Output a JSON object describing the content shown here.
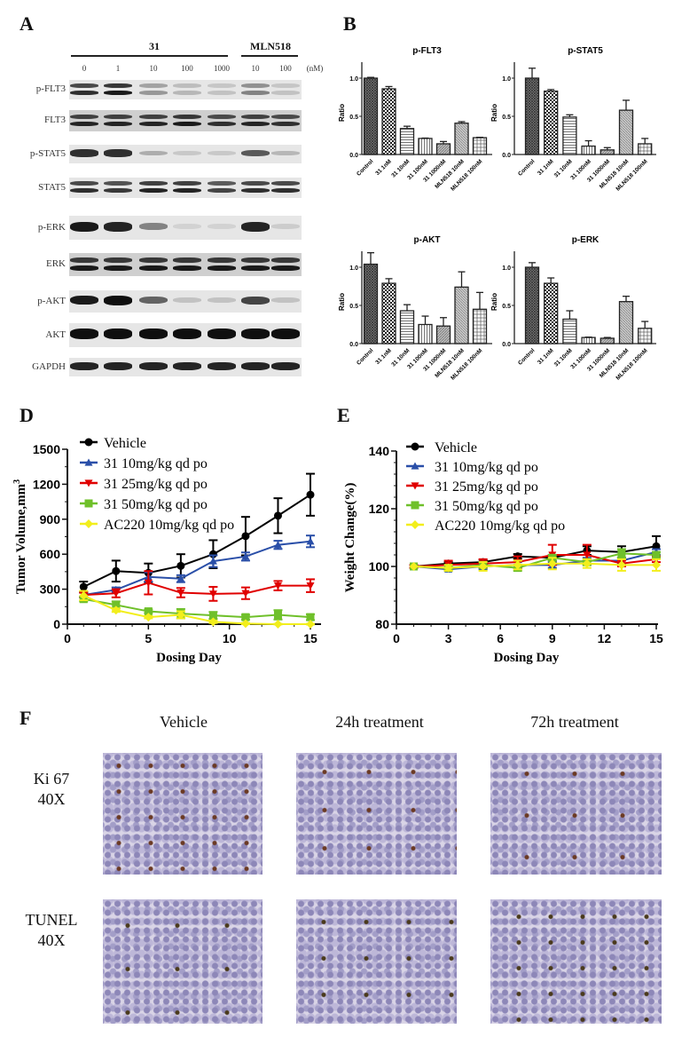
{
  "panels": {
    "a": "A",
    "b": "B",
    "d": "D",
    "e": "E",
    "f": "F"
  },
  "blot": {
    "group_31": "31",
    "group_mln": "MLN518",
    "concentrations": [
      "0",
      "1",
      "10",
      "100",
      "1000",
      "10",
      "100"
    ],
    "unit": "(nM)",
    "rows": [
      {
        "label": "p-FLT3",
        "intensity": [
          0.85,
          0.95,
          0.35,
          0.2,
          0.15,
          0.45,
          0.15
        ],
        "double": true
      },
      {
        "label": "FLT3",
        "intensity": [
          0.9,
          0.9,
          0.9,
          0.95,
          0.85,
          0.9,
          0.85
        ],
        "double": true
      },
      {
        "label": "p-STAT5",
        "intensity": [
          0.85,
          0.85,
          0.25,
          0.12,
          0.12,
          0.65,
          0.2
        ],
        "double": false
      },
      {
        "label": "STAT5",
        "intensity": [
          0.85,
          0.8,
          0.9,
          0.9,
          0.75,
          0.85,
          0.85
        ],
        "double": true
      },
      {
        "label": "p-ERK",
        "intensity": [
          0.95,
          0.9,
          0.45,
          0.07,
          0.07,
          0.9,
          0.1
        ],
        "double": false
      },
      {
        "label": "ERK",
        "intensity": [
          0.95,
          0.95,
          0.95,
          0.95,
          0.95,
          0.95,
          0.95
        ],
        "double": true
      },
      {
        "label": "p-AKT",
        "intensity": [
          0.95,
          1.0,
          0.6,
          0.15,
          0.15,
          0.75,
          0.15
        ],
        "double": false
      },
      {
        "label": "AKT",
        "intensity": [
          1,
          1,
          1,
          1,
          1,
          1,
          1
        ],
        "double": false
      },
      {
        "label": "GAPDH",
        "intensity": [
          0.9,
          0.9,
          0.9,
          0.9,
          0.9,
          0.9,
          0.9
        ],
        "double": false
      }
    ]
  },
  "chart_data": [
    {
      "id": "b1",
      "type": "bar",
      "title": "p-FLT3",
      "ylabel": "Ratio",
      "ylim": [
        0,
        1.2
      ],
      "yticks": [
        "0.0",
        "0.5",
        "1.0"
      ],
      "categories": [
        "Control",
        "31 1nM",
        "31 10nM",
        "31 100nM",
        "31 1000nM",
        "MLN518 10nM",
        "MLN518 100nM"
      ],
      "values": [
        1.0,
        0.86,
        0.34,
        0.21,
        0.14,
        0.41,
        0.22
      ],
      "errors": [
        0.01,
        0.03,
        0.03,
        0.005,
        0.03,
        0.02,
        0.005
      ]
    },
    {
      "id": "b2",
      "type": "bar",
      "title": "p-STAT5",
      "ylabel": "Ratio",
      "ylim": [
        0,
        1.2
      ],
      "yticks": [
        "0.0",
        "0.5",
        "1.0"
      ],
      "categories": [
        "Control",
        "31 1nM",
        "31 10nM",
        "31 100nM",
        "31 1000nM",
        "MLN518 10nM",
        "MLN518 100nM"
      ],
      "values": [
        1.0,
        0.83,
        0.49,
        0.11,
        0.06,
        0.58,
        0.14
      ],
      "errors": [
        0.13,
        0.02,
        0.03,
        0.07,
        0.03,
        0.13,
        0.07
      ]
    },
    {
      "id": "b3",
      "type": "bar",
      "title": "p-AKT",
      "ylabel": "Ratio",
      "ylim": [
        0,
        1.2
      ],
      "yticks": [
        "0.0",
        "0.5",
        "1.0"
      ],
      "categories": [
        "Control",
        "31 1nM",
        "31 10nM",
        "31 100nM",
        "31 1000nM",
        "MLN518 10nM",
        "MLN518 100nM"
      ],
      "values": [
        1.04,
        0.79,
        0.43,
        0.25,
        0.23,
        0.74,
        0.45
      ],
      "errors": [
        0.15,
        0.06,
        0.08,
        0.11,
        0.11,
        0.2,
        0.22
      ]
    },
    {
      "id": "b4",
      "type": "bar",
      "title": "p-ERK",
      "ylabel": "Ratio",
      "ylim": [
        0,
        1.2
      ],
      "yticks": [
        "0.0",
        "0.5",
        "1.0"
      ],
      "categories": [
        "Control",
        "31 1nM",
        "31 10nM",
        "31 100nM",
        "31 1000nM",
        "MLN518 10nM",
        "MLN518 100nM"
      ],
      "values": [
        1.0,
        0.79,
        0.32,
        0.08,
        0.07,
        0.55,
        0.2
      ],
      "errors": [
        0.06,
        0.07,
        0.11,
        0.005,
        0.01,
        0.07,
        0.09
      ]
    },
    {
      "id": "d",
      "type": "line",
      "xlabel": "Dosing Day",
      "ylabel": "Tumor Volume,mm",
      "ylabel_sup": "3",
      "xlim": [
        0,
        16
      ],
      "xticks": [
        0,
        5,
        10,
        15
      ],
      "ylim": [
        0,
        1500
      ],
      "yticks": [
        0,
        300,
        600,
        900,
        1200,
        1500
      ],
      "legend": "top-left",
      "x": [
        1,
        3,
        5,
        7,
        9,
        11,
        13,
        15
      ],
      "series": [
        {
          "name": "Vehicle",
          "color": "#000000",
          "marker": "circle",
          "values": [
            320,
            455,
            440,
            500,
            600,
            755,
            930,
            1110
          ],
          "errors": [
            45,
            90,
            80,
            100,
            120,
            165,
            150,
            180
          ]
        },
        {
          "name": "31 10mg/kg qd po",
          "color": "#2a4fa8",
          "marker": "triangle-up",
          "values": [
            250,
            295,
            405,
            390,
            540,
            580,
            680,
            710
          ],
          "errors": [
            20,
            20,
            40,
            30,
            50,
            35,
            35,
            50
          ]
        },
        {
          "name": "31 25mg/kg qd po",
          "color": "#e00000",
          "marker": "triangle-down",
          "values": [
            250,
            265,
            355,
            270,
            260,
            265,
            330,
            330
          ],
          "errors": [
            20,
            35,
            100,
            40,
            60,
            50,
            40,
            55
          ]
        },
        {
          "name": "31 50mg/kg qd po",
          "color": "#6fc02a",
          "marker": "square",
          "values": [
            215,
            165,
            110,
            90,
            75,
            60,
            80,
            60
          ],
          "errors": [
            20,
            30,
            15,
            40,
            30,
            20,
            40,
            25
          ]
        },
        {
          "name": "AC220 10mg/kg qd po",
          "color": "#f2ee1c",
          "marker": "diamond",
          "values": [
            245,
            120,
            60,
            80,
            20,
            5,
            0,
            0
          ],
          "errors": [
            40,
            15,
            10,
            30,
            10,
            5,
            3,
            3
          ]
        }
      ]
    },
    {
      "id": "e",
      "type": "line",
      "xlabel": "Dosing Day",
      "ylabel": "Weight Change(%)",
      "xlim": [
        0,
        15
      ],
      "xticks": [
        0,
        3,
        6,
        9,
        12,
        15
      ],
      "ylim": [
        80,
        140
      ],
      "yticks": [
        80,
        100,
        120,
        140
      ],
      "legend": "top-left",
      "x": [
        1,
        3,
        5,
        7,
        9,
        11,
        13,
        15
      ],
      "series": [
        {
          "name": "Vehicle",
          "color": "#000000",
          "marker": "circle",
          "values": [
            100,
            101,
            101.5,
            103.5,
            103,
            105.5,
            105,
            107
          ],
          "errors": [
            0,
            0.5,
            0.8,
            0.8,
            1,
            1.5,
            2,
            3.5
          ]
        },
        {
          "name": "31 10mg/kg qd po",
          "color": "#2a4fa8",
          "marker": "triangle-up",
          "values": [
            100,
            99,
            100,
            100.5,
            100.5,
            102,
            102,
            105
          ],
          "errors": [
            0,
            0.5,
            1,
            1,
            1,
            1,
            1,
            1
          ]
        },
        {
          "name": "31 25mg/kg qd po",
          "color": "#e00000",
          "marker": "triangle-down",
          "values": [
            100,
            100.5,
            101,
            101.5,
            104,
            104,
            101,
            102.5
          ],
          "errors": [
            0.5,
            1.5,
            1.5,
            2,
            3.5,
            3.5,
            1,
            1
          ]
        },
        {
          "name": "31 50mg/kg qd po",
          "color": "#6fc02a",
          "marker": "square",
          "values": [
            100,
            99.5,
            100.5,
            99.5,
            103,
            101.5,
            104.5,
            104
          ],
          "errors": [
            0,
            0.5,
            1,
            1,
            1,
            1,
            1.5,
            1
          ]
        },
        {
          "name": "AC220 10mg/kg qd po",
          "color": "#f2ee1c",
          "marker": "diamond",
          "values": [
            100,
            99.5,
            100,
            100.5,
            101,
            101,
            100.5,
            100.5
          ],
          "errors": [
            0,
            1,
            1.5,
            1.5,
            2,
            1.5,
            2,
            2
          ]
        }
      ]
    }
  ],
  "histology": {
    "columns": [
      "Vehicle",
      "24h treatment",
      "72h treatment"
    ],
    "rows": [
      {
        "label1": "Ki 67",
        "label2": "40X",
        "positive_fraction": [
          0.6,
          0.25,
          0.15
        ]
      },
      {
        "label1": "TUNEL",
        "label2": "40X",
        "positive_fraction": [
          0.1,
          0.3,
          0.6
        ]
      }
    ]
  }
}
